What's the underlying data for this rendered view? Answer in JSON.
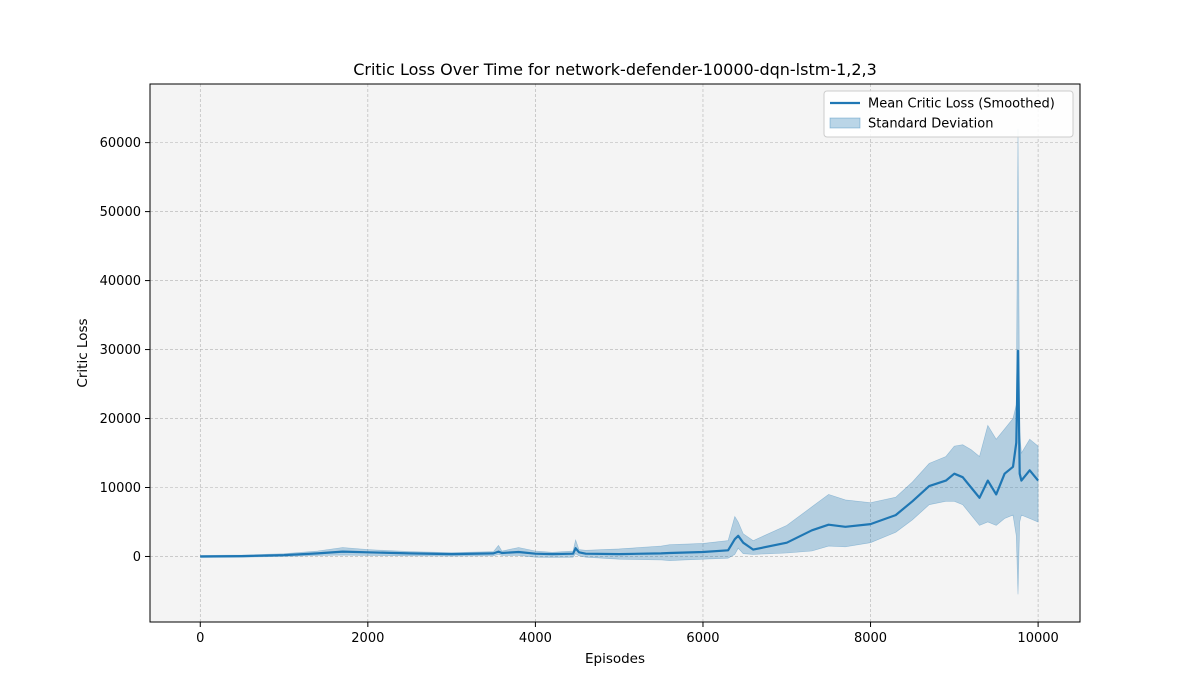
{
  "chart_data": {
    "type": "line",
    "title": "Critic Loss Over Time for network-defender-10000-dqn-lstm-1,2,3",
    "xlabel": "Episodes",
    "ylabel": "Critic Loss",
    "xlim": [
      -600,
      10500
    ],
    "ylim": [
      -9500,
      68500
    ],
    "xticks": [
      0,
      2000,
      4000,
      6000,
      8000,
      10000
    ],
    "yticks": [
      0,
      10000,
      20000,
      30000,
      40000,
      50000,
      60000
    ],
    "grid": true,
    "legend_position": "top-right",
    "colors": {
      "line": "#1f77b4",
      "band": "#1f77b4",
      "plot_bg": "#f4f4f4",
      "grid": "#b0b0b0"
    },
    "series": [
      {
        "name": "Mean Critic Loss (Smoothed)",
        "style": "line",
        "x": [
          0,
          500,
          1000,
          1400,
          1700,
          2000,
          2500,
          3000,
          3500,
          3560,
          3600,
          3800,
          4000,
          4200,
          4450,
          4480,
          4520,
          4600,
          5000,
          5500,
          5600,
          6000,
          6300,
          6380,
          6420,
          6480,
          6600,
          7000,
          7300,
          7500,
          7700,
          8000,
          8300,
          8500,
          8700,
          8900,
          9000,
          9100,
          9200,
          9300,
          9400,
          9500,
          9600,
          9700,
          9740,
          9760,
          9780,
          9800,
          9900,
          10000
        ],
        "y": [
          0,
          50,
          200,
          450,
          700,
          600,
          450,
          350,
          450,
          700,
          500,
          650,
          400,
          350,
          400,
          1200,
          600,
          400,
          350,
          450,
          500,
          650,
          900,
          2500,
          3000,
          2000,
          1000,
          2000,
          3800,
          4600,
          4300,
          4700,
          6000,
          8000,
          10200,
          11000,
          12000,
          11500,
          10000,
          8500,
          11000,
          9000,
          12000,
          13000,
          16500,
          29800,
          12000,
          11000,
          12500,
          11000
        ]
      },
      {
        "name": "Standard Deviation",
        "style": "band",
        "x": [
          0,
          500,
          1000,
          1400,
          1700,
          2000,
          2500,
          3000,
          3500,
          3560,
          3600,
          3800,
          4000,
          4200,
          4450,
          4480,
          4520,
          4600,
          5000,
          5500,
          5600,
          6000,
          6300,
          6380,
          6420,
          6480,
          6600,
          7000,
          7300,
          7500,
          7700,
          8000,
          8300,
          8500,
          8700,
          8900,
          9000,
          9100,
          9200,
          9300,
          9400,
          9500,
          9600,
          9700,
          9740,
          9760,
          9780,
          9800,
          9900,
          10000
        ],
        "upper": [
          150,
          200,
          400,
          800,
          1300,
          1000,
          700,
          550,
          700,
          1600,
          800,
          1300,
          800,
          600,
          800,
          2400,
          1000,
          900,
          1100,
          1500,
          1700,
          1900,
          2300,
          5800,
          5000,
          3300,
          2300,
          4500,
          7200,
          9000,
          8200,
          7800,
          8600,
          10800,
          13500,
          14500,
          16000,
          16200,
          15500,
          14500,
          19000,
          17000,
          18500,
          20000,
          22000,
          62000,
          18000,
          15000,
          17000,
          16000
        ],
        "lower": [
          -150,
          -100,
          0,
          150,
          200,
          150,
          100,
          50,
          100,
          300,
          150,
          150,
          -100,
          -150,
          -100,
          400,
          100,
          -100,
          -400,
          -500,
          -600,
          -400,
          -250,
          300,
          1200,
          400,
          300,
          500,
          800,
          1500,
          1400,
          2000,
          3500,
          5300,
          7500,
          8000,
          8000,
          7500,
          6000,
          4500,
          5000,
          4500,
          5500,
          6000,
          3000,
          -5500,
          5000,
          6000,
          5500,
          5000
        ]
      }
    ]
  }
}
